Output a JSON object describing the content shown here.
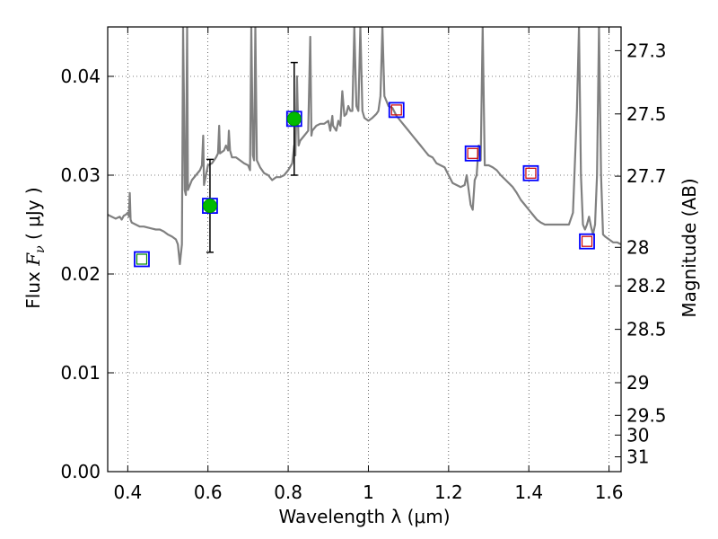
{
  "chart_data": {
    "type": "scatter",
    "xlabel": "Wavelength  λ (μm)",
    "ylabel_prefix": "Flux  ",
    "ylabel_symbol": "F",
    "ylabel_sub": "ν",
    "ylabel_unit": "  ( μJy )",
    "ylabel_right": "Magnitude (AB)",
    "xlim": [
      0.35,
      1.63
    ],
    "ylim": [
      0.0,
      0.045
    ],
    "grid": true,
    "x_ticks": [
      {
        "value": 0.4,
        "label": "0.4"
      },
      {
        "value": 0.6,
        "label": "0.6"
      },
      {
        "value": 0.8,
        "label": "0.8"
      },
      {
        "value": 1.0,
        "label": "1"
      },
      {
        "value": 1.2,
        "label": "1.2"
      },
      {
        "value": 1.4,
        "label": "1.4"
      },
      {
        "value": 1.6,
        "label": "1.6"
      }
    ],
    "y_ticks": [
      {
        "value": 0.0,
        "label": "0.00"
      },
      {
        "value": 0.01,
        "label": "0.01"
      },
      {
        "value": 0.02,
        "label": "0.02"
      },
      {
        "value": 0.03,
        "label": "0.03"
      },
      {
        "value": 0.04,
        "label": "0.04"
      }
    ],
    "right_ticks": [
      {
        "flux": 0.0426,
        "label": "27.3"
      },
      {
        "flux": 0.0362,
        "label": "27.5"
      },
      {
        "flux": 0.0299,
        "label": "27.7"
      },
      {
        "flux": 0.0227,
        "label": "28"
      },
      {
        "flux": 0.0188,
        "label": "28.2"
      },
      {
        "flux": 0.0144,
        "label": "28.5"
      },
      {
        "flux": 0.009,
        "label": "29"
      },
      {
        "flux": 0.0057,
        "label": "29.5"
      },
      {
        "flux": 0.0037,
        "label": "30"
      },
      {
        "flux": 0.0015,
        "label": "31"
      }
    ],
    "series": [
      {
        "name": "model-spectrum",
        "kind": "line",
        "color": "#808080",
        "points": [
          [
            0.35,
            0.026
          ],
          [
            0.36,
            0.0258
          ],
          [
            0.37,
            0.0256
          ],
          [
            0.38,
            0.0258
          ],
          [
            0.385,
            0.0255
          ],
          [
            0.39,
            0.0259
          ],
          [
            0.395,
            0.026
          ],
          [
            0.4,
            0.0262
          ],
          [
            0.403,
            0.0258
          ],
          [
            0.405,
            0.0282
          ],
          [
            0.407,
            0.0255
          ],
          [
            0.41,
            0.0252
          ],
          [
            0.42,
            0.025
          ],
          [
            0.43,
            0.0248
          ],
          [
            0.44,
            0.0248
          ],
          [
            0.45,
            0.0247
          ],
          [
            0.46,
            0.0246
          ],
          [
            0.47,
            0.0245
          ],
          [
            0.48,
            0.0245
          ],
          [
            0.49,
            0.0243
          ],
          [
            0.5,
            0.024
          ],
          [
            0.51,
            0.0238
          ],
          [
            0.52,
            0.0235
          ],
          [
            0.525,
            0.023
          ],
          [
            0.53,
            0.021
          ],
          [
            0.532,
            0.0218
          ],
          [
            0.535,
            0.023
          ],
          [
            0.538,
            0.045
          ],
          [
            0.54,
            0.038
          ],
          [
            0.542,
            0.0285
          ],
          [
            0.545,
            0.028
          ],
          [
            0.548,
            0.045
          ],
          [
            0.55,
            0.0285
          ],
          [
            0.555,
            0.029
          ],
          [
            0.56,
            0.0295
          ],
          [
            0.57,
            0.03
          ],
          [
            0.58,
            0.0305
          ],
          [
            0.585,
            0.031
          ],
          [
            0.588,
            0.034
          ],
          [
            0.59,
            0.029
          ],
          [
            0.595,
            0.03
          ],
          [
            0.6,
            0.031
          ],
          [
            0.61,
            0.0312
          ],
          [
            0.62,
            0.0318
          ],
          [
            0.625,
            0.0322
          ],
          [
            0.628,
            0.035
          ],
          [
            0.63,
            0.0322
          ],
          [
            0.64,
            0.0325
          ],
          [
            0.645,
            0.033
          ],
          [
            0.65,
            0.0325
          ],
          [
            0.652,
            0.0345
          ],
          [
            0.655,
            0.0325
          ],
          [
            0.66,
            0.0318
          ],
          [
            0.67,
            0.0318
          ],
          [
            0.68,
            0.0315
          ],
          [
            0.69,
            0.0312
          ],
          [
            0.7,
            0.031
          ],
          [
            0.705,
            0.0305
          ],
          [
            0.708,
            0.045
          ],
          [
            0.712,
            0.032
          ],
          [
            0.715,
            0.0315
          ],
          [
            0.718,
            0.045
          ],
          [
            0.722,
            0.0315
          ],
          [
            0.73,
            0.0308
          ],
          [
            0.74,
            0.0302
          ],
          [
            0.75,
            0.03
          ],
          [
            0.76,
            0.0295
          ],
          [
            0.77,
            0.0298
          ],
          [
            0.78,
            0.0298
          ],
          [
            0.79,
            0.03
          ],
          [
            0.8,
            0.0305
          ],
          [
            0.81,
            0.0312
          ],
          [
            0.815,
            0.033
          ],
          [
            0.818,
            0.032
          ],
          [
            0.822,
            0.04
          ],
          [
            0.826,
            0.033
          ],
          [
            0.83,
            0.0335
          ],
          [
            0.84,
            0.034
          ],
          [
            0.85,
            0.0345
          ],
          [
            0.855,
            0.044
          ],
          [
            0.858,
            0.034
          ],
          [
            0.86,
            0.0345
          ],
          [
            0.87,
            0.035
          ],
          [
            0.88,
            0.0352
          ],
          [
            0.89,
            0.0352
          ],
          [
            0.9,
            0.0355
          ],
          [
            0.905,
            0.0345
          ],
          [
            0.91,
            0.036
          ],
          [
            0.912,
            0.035
          ],
          [
            0.92,
            0.0345
          ],
          [
            0.925,
            0.0355
          ],
          [
            0.93,
            0.035
          ],
          [
            0.935,
            0.0385
          ],
          [
            0.94,
            0.036
          ],
          [
            0.945,
            0.0362
          ],
          [
            0.95,
            0.037
          ],
          [
            0.955,
            0.0365
          ],
          [
            0.96,
            0.0365
          ],
          [
            0.965,
            0.045
          ],
          [
            0.97,
            0.037
          ],
          [
            0.975,
            0.0365
          ],
          [
            0.98,
            0.045
          ],
          [
            0.985,
            0.0365
          ],
          [
            0.99,
            0.0358
          ],
          [
            1.0,
            0.0355
          ],
          [
            1.01,
            0.0358
          ],
          [
            1.02,
            0.0362
          ],
          [
            1.025,
            0.0365
          ],
          [
            1.03,
            0.038
          ],
          [
            1.035,
            0.045
          ],
          [
            1.04,
            0.038
          ],
          [
            1.045,
            0.0375
          ],
          [
            1.05,
            0.037
          ],
          [
            1.06,
            0.0368
          ],
          [
            1.07,
            0.036
          ],
          [
            1.08,
            0.0355
          ],
          [
            1.09,
            0.035
          ],
          [
            1.1,
            0.0345
          ],
          [
            1.11,
            0.034
          ],
          [
            1.12,
            0.0335
          ],
          [
            1.13,
            0.033
          ],
          [
            1.14,
            0.0325
          ],
          [
            1.15,
            0.032
          ],
          [
            1.16,
            0.0318
          ],
          [
            1.17,
            0.0312
          ],
          [
            1.18,
            0.031
          ],
          [
            1.19,
            0.0308
          ],
          [
            1.2,
            0.03
          ],
          [
            1.21,
            0.0292
          ],
          [
            1.22,
            0.029
          ],
          [
            1.23,
            0.0288
          ],
          [
            1.24,
            0.029
          ],
          [
            1.245,
            0.03
          ],
          [
            1.25,
            0.0285
          ],
          [
            1.255,
            0.027
          ],
          [
            1.26,
            0.0265
          ],
          [
            1.265,
            0.0295
          ],
          [
            1.27,
            0.03
          ],
          [
            1.275,
            0.033
          ],
          [
            1.28,
            0.0315
          ],
          [
            1.285,
            0.045
          ],
          [
            1.29,
            0.031
          ],
          [
            1.3,
            0.031
          ],
          [
            1.31,
            0.0308
          ],
          [
            1.32,
            0.0305
          ],
          [
            1.33,
            0.03
          ],
          [
            1.34,
            0.0296
          ],
          [
            1.35,
            0.0292
          ],
          [
            1.36,
            0.0288
          ],
          [
            1.37,
            0.0282
          ],
          [
            1.38,
            0.0275
          ],
          [
            1.39,
            0.027
          ],
          [
            1.4,
            0.0265
          ],
          [
            1.41,
            0.026
          ],
          [
            1.42,
            0.0255
          ],
          [
            1.43,
            0.0252
          ],
          [
            1.44,
            0.025
          ],
          [
            1.45,
            0.025
          ],
          [
            1.46,
            0.025
          ],
          [
            1.47,
            0.025
          ],
          [
            1.48,
            0.025
          ],
          [
            1.49,
            0.025
          ],
          [
            1.5,
            0.025
          ],
          [
            1.51,
            0.0262
          ],
          [
            1.52,
            0.0365
          ],
          [
            1.525,
            0.045
          ],
          [
            1.53,
            0.03
          ],
          [
            1.535,
            0.025
          ],
          [
            1.54,
            0.0245
          ],
          [
            1.545,
            0.025
          ],
          [
            1.55,
            0.0258
          ],
          [
            1.555,
            0.0248
          ],
          [
            1.56,
            0.024
          ],
          [
            1.565,
            0.025
          ],
          [
            1.57,
            0.03
          ],
          [
            1.575,
            0.045
          ],
          [
            1.58,
            0.03
          ],
          [
            1.585,
            0.024
          ],
          [
            1.59,
            0.0238
          ],
          [
            1.6,
            0.0235
          ],
          [
            1.61,
            0.0232
          ],
          [
            1.62,
            0.0232
          ],
          [
            1.63,
            0.023
          ]
        ]
      },
      {
        "name": "observed-photometry",
        "kind": "circle-errorbar",
        "color": "#00bb00",
        "points": [
          {
            "x": 0.605,
            "y": 0.0269,
            "err_low": 0.0047,
            "err_high": 0.0047
          },
          {
            "x": 0.815,
            "y": 0.0357,
            "err_low": 0.0057,
            "err_high": 0.0057
          }
        ]
      },
      {
        "name": "model-photometry",
        "kind": "square",
        "color": "#0000ff",
        "points": [
          {
            "x": 0.435,
            "y": 0.0215
          },
          {
            "x": 0.605,
            "y": 0.0269
          },
          {
            "x": 0.815,
            "y": 0.0357
          },
          {
            "x": 1.07,
            "y": 0.0366
          },
          {
            "x": 1.26,
            "y": 0.0322
          },
          {
            "x": 1.405,
            "y": 0.0302
          },
          {
            "x": 1.545,
            "y": 0.0233
          }
        ]
      },
      {
        "name": "upper-limits",
        "kind": "square-inner",
        "colors": [
          "#008800",
          "#cc0000"
        ],
        "points": [
          {
            "x": 0.435,
            "y": 0.0215,
            "c": 0
          },
          {
            "x": 1.07,
            "y": 0.0366,
            "c": 1
          },
          {
            "x": 1.26,
            "y": 0.0322,
            "c": 1
          },
          {
            "x": 1.405,
            "y": 0.0302,
            "c": 1
          },
          {
            "x": 1.545,
            "y": 0.0233,
            "c": 1
          }
        ]
      }
    ]
  }
}
